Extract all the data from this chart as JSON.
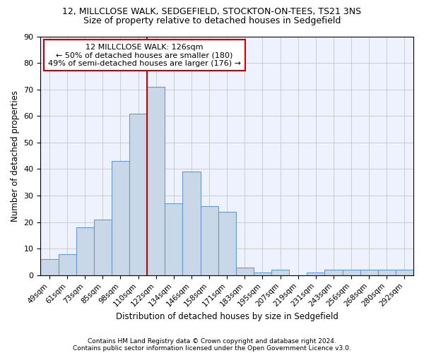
{
  "title1": "12, MILLCLOSE WALK, SEDGEFIELD, STOCKTON-ON-TEES, TS21 3NS",
  "title2": "Size of property relative to detached houses in Sedgefield",
  "xlabel": "Distribution of detached houses by size in Sedgefield",
  "ylabel": "Number of detached properties",
  "categories": [
    "49sqm",
    "61sqm",
    "73sqm",
    "85sqm",
    "98sqm",
    "110sqm",
    "122sqm",
    "134sqm",
    "146sqm",
    "158sqm",
    "171sqm",
    "183sqm",
    "195sqm",
    "207sqm",
    "219sqm",
    "231sqm",
    "243sqm",
    "256sqm",
    "268sqm",
    "280sqm",
    "292sqm"
  ],
  "values": [
    6,
    8,
    18,
    21,
    43,
    61,
    71,
    27,
    39,
    26,
    24,
    3,
    1,
    2,
    0,
    1,
    2,
    2,
    2,
    2,
    2
  ],
  "bar_color": "#c8d8e8",
  "bar_edge_color": "#6699cc",
  "property_line_index": 6,
  "property_line_color": "#cc0000",
  "annotation_text": "12 MILLCLOSE WALK: 126sqm\n← 50% of detached houses are smaller (180)\n49% of semi-detached houses are larger (176) →",
  "annotation_box_color": "#ffffff",
  "annotation_box_edge": "#cc0000",
  "ylim": [
    0,
    90
  ],
  "yticks": [
    0,
    10,
    20,
    30,
    40,
    50,
    60,
    70,
    80,
    90
  ],
  "grid_color": "#cccccc",
  "bg_color": "#eef2ff",
  "footer1": "Contains HM Land Registry data © Crown copyright and database right 2024.",
  "footer2": "Contains public sector information licensed under the Open Government Licence v3.0.",
  "title1_fontsize": 9,
  "title2_fontsize": 9,
  "xlabel_fontsize": 8.5,
  "ylabel_fontsize": 8.5,
  "annot_fontsize": 8
}
